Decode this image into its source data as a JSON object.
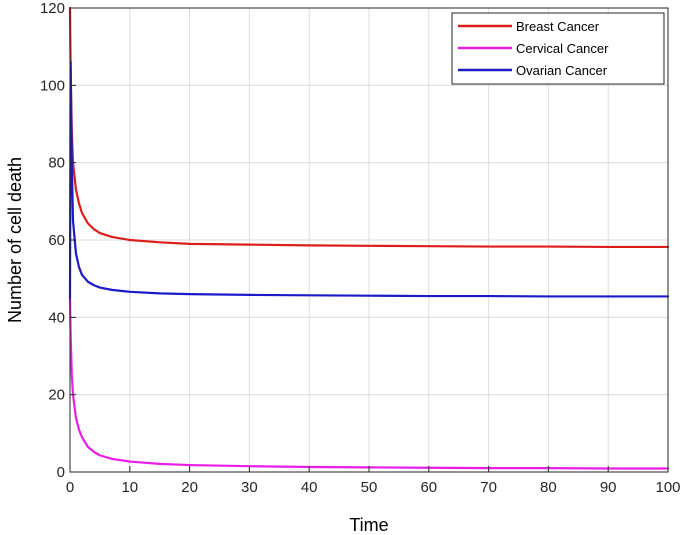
{
  "chart_data": {
    "type": "line",
    "title": "",
    "xlabel": "Time",
    "ylabel": "Number of cell death",
    "xlim": [
      0,
      100
    ],
    "ylim": [
      0,
      120
    ],
    "xticks": [
      0,
      10,
      20,
      30,
      40,
      50,
      60,
      70,
      80,
      90,
      100
    ],
    "yticks": [
      0,
      20,
      40,
      60,
      80,
      100,
      120
    ],
    "grid": true,
    "legend_position": "top-right",
    "series": [
      {
        "name": "Breast Cancer",
        "color": "#dd1c1c",
        "x": [
          0,
          0.1,
          0.3,
          0.5,
          1,
          1.5,
          2,
          3,
          4,
          5,
          7,
          10,
          15,
          20,
          30,
          40,
          50,
          60,
          70,
          80,
          90,
          100
        ],
        "y": [
          120,
          105,
          88,
          80,
          73,
          69.5,
          67,
          64.3,
          62.8,
          61.8,
          60.8,
          60,
          59.4,
          59,
          58.8,
          58.6,
          58.5,
          58.4,
          58.3,
          58.3,
          58.2,
          58.2
        ]
      },
      {
        "name": "Cervical  Cancer",
        "color": "#e81ee8",
        "x": [
          0,
          0.1,
          0.3,
          0.5,
          1,
          1.5,
          2,
          3,
          4,
          5,
          7,
          10,
          15,
          20,
          30,
          40,
          50,
          60,
          70,
          80,
          90,
          100
        ],
        "y": [
          45,
          36,
          25,
          20,
          14,
          11,
          9,
          6.5,
          5.2,
          4.3,
          3.4,
          2.7,
          2.1,
          1.8,
          1.5,
          1.3,
          1.2,
          1.1,
          1.0,
          1.0,
          0.9,
          0.9
        ]
      },
      {
        "name": "Ovarian Cancer",
        "color": "#1a1ac8",
        "x": [
          0,
          0.1,
          0.3,
          0.5,
          1,
          1.5,
          2,
          3,
          4,
          5,
          7,
          10,
          15,
          20,
          30,
          40,
          50,
          60,
          70,
          80,
          90,
          100
        ],
        "y": [
          45,
          106,
          80,
          65,
          56.5,
          53,
          51,
          49.2,
          48.3,
          47.7,
          47.1,
          46.6,
          46.2,
          46,
          45.8,
          45.7,
          45.6,
          45.5,
          45.5,
          45.4,
          45.4,
          45.4
        ]
      }
    ]
  }
}
